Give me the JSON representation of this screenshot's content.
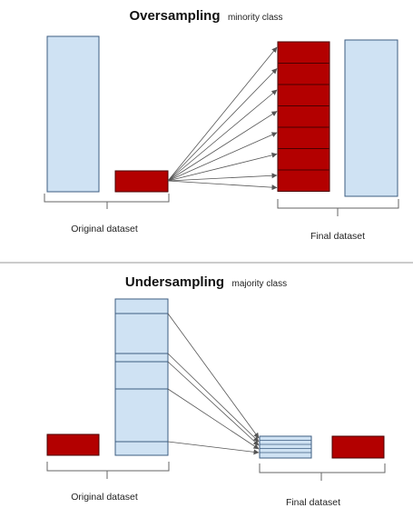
{
  "top": {
    "title_bold": "Oversampling",
    "title_rest": "minority class",
    "caption_left": "Original dataset",
    "caption_right": "Final dataset"
  },
  "bottom": {
    "title_bold": "Undersampling",
    "title_rest": "majority class",
    "caption_left": "Original dataset",
    "caption_right": "Final dataset"
  },
  "colors": {
    "majority_fill": "#cfe2f3",
    "majority_stroke": "#3d5d82",
    "minority_fill": "#b30000",
    "minority_stroke": "#4a0000",
    "arrow": "#555555",
    "divider": "#999999",
    "bracket": "#666666"
  }
}
